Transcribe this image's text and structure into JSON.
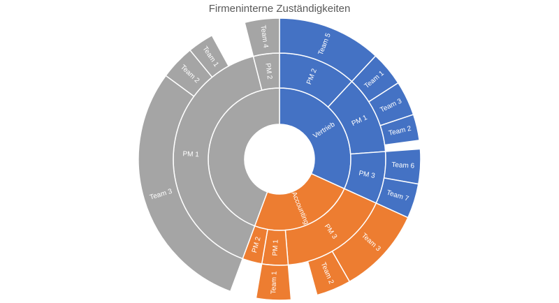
{
  "chart_data": {
    "type": "sunburst",
    "title": "Firmeninterne Zuständigkeiten",
    "colors": {
      "Vertrieb": "#4472C4",
      "Accounting": "#ED7D31",
      "Gray": "#A5A5A5"
    },
    "children": [
      {
        "name": "Vertrieb",
        "value": 32,
        "color_key": "Vertrieb",
        "children": [
          {
            "name": "PM 2",
            "value": 12,
            "children": [
              {
                "name": "Team 5",
                "value": 12
              }
            ]
          },
          {
            "name": "PM 1",
            "value": 12,
            "children": [
              {
                "name": "Team 1",
                "value": 4
              },
              {
                "name": "Team 3",
                "value": 4
              },
              {
                "name": "Team 2",
                "value": 3
              }
            ]
          },
          {
            "name": "PM 3",
            "value": 8,
            "children": [
              {
                "name": "Team 6",
                "value": 4
              },
              {
                "name": "Team 7",
                "value": 4
              }
            ]
          }
        ]
      },
      {
        "name": "Accounting",
        "value": 24,
        "color_key": "Accounting",
        "children": [
          {
            "name": "PM 3",
            "value": 17,
            "children": [
              {
                "name": "Team 3",
                "value": 10
              },
              {
                "name": "Team 2",
                "value": 4
              }
            ]
          },
          {
            "name": "PM 1",
            "value": 4,
            "children": [
              {
                "name": "Team 1",
                "value": 4
              }
            ]
          },
          {
            "name": "PM 2",
            "value": 3,
            "children": []
          }
        ]
      },
      {
        "name": "",
        "value": 41,
        "color_key": "Gray",
        "children": [
          {
            "name": "PM 1",
            "value": 37,
            "children": [
              {
                "name": "Team 3",
                "value": 26
              },
              {
                "name": "Team 2",
                "value": 4
              },
              {
                "name": "Team 1",
                "value": 3
              }
            ]
          },
          {
            "name": "PM 2",
            "value": 4,
            "children": [
              {
                "name": "Team 4",
                "value": 4
              }
            ]
          }
        ]
      }
    ]
  }
}
